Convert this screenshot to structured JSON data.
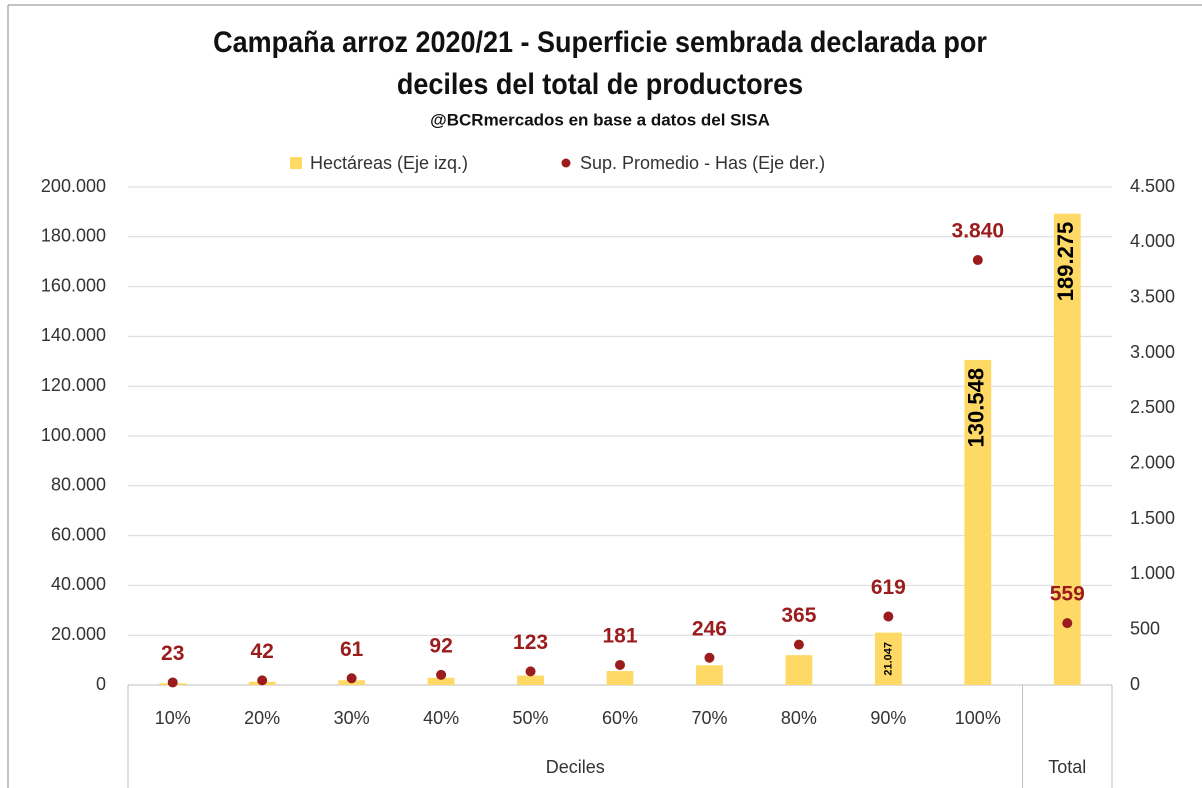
{
  "chart_data": {
    "type": "bar_dot_combo",
    "title_lines": [
      "Campaña arroz 2020/21 - Superficie sembrada declarada por",
      "deciles del total de productores"
    ],
    "subtitle": "@BCRmercados en base a datos del SISA",
    "categories": [
      "10%",
      "20%",
      "30%",
      "40%",
      "50%",
      "60%",
      "70%",
      "80%",
      "90%",
      "100%",
      null
    ],
    "x_groups": [
      {
        "name": "Deciles",
        "count": 10
      },
      {
        "name": "Total",
        "count": 1
      }
    ],
    "series": [
      {
        "name": "Hectáreas (Eje izq.)",
        "type": "bar",
        "color": "#ffd966",
        "values": [
          700,
          1300,
          1900,
          2900,
          3800,
          5600,
          7900,
          12000,
          21047,
          130548,
          189275
        ],
        "value_labels": [
          null,
          null,
          null,
          null,
          null,
          null,
          null,
          null,
          "21.047",
          "130.548",
          "189.275"
        ]
      },
      {
        "name": "Sup. Promedio - Has (Eje der.)",
        "type": "dot",
        "axis": "y2",
        "color": "#9b1c1c",
        "values": [
          23,
          42,
          61,
          92,
          123,
          181,
          246,
          365,
          619,
          3840,
          559
        ],
        "value_labels": [
          "23",
          "42",
          "61",
          "92",
          "123",
          "181",
          "246",
          "365",
          "619",
          "3.840",
          "559"
        ]
      }
    ],
    "ylim": [
      0,
      200000
    ],
    "yticks": [
      0,
      {
        "value": 20000,
        "label": "20.000"
      },
      {
        "value": 40000,
        "label": "40.000"
      },
      {
        "value": 60000,
        "label": "60.000"
      },
      {
        "value": 80000,
        "label": "80.000"
      },
      {
        "value": 100000,
        "label": "100.000"
      },
      {
        "value": 120000,
        "label": "120.000"
      },
      {
        "value": 140000,
        "label": "140.000"
      },
      {
        "value": 160000,
        "label": "160.000"
      },
      {
        "value": 180000,
        "label": "180.000"
      },
      {
        "value": 200000,
        "label": "200.000"
      }
    ],
    "y2lim": [
      0,
      4500
    ],
    "y2ticks": [
      0,
      500,
      {
        "value": 1000,
        "label": "1.000"
      },
      {
        "value": 1500,
        "label": "1.500"
      },
      {
        "value": 2000,
        "label": "2.000"
      },
      {
        "value": 2500,
        "label": "2.500"
      },
      {
        "value": 3000,
        "label": "3.000"
      },
      {
        "value": 3500,
        "label": "3.500"
      },
      {
        "value": 4000,
        "label": "4.000"
      },
      {
        "value": 4500,
        "label": "4.500"
      }
    ],
    "grid": true,
    "legend": "top"
  }
}
